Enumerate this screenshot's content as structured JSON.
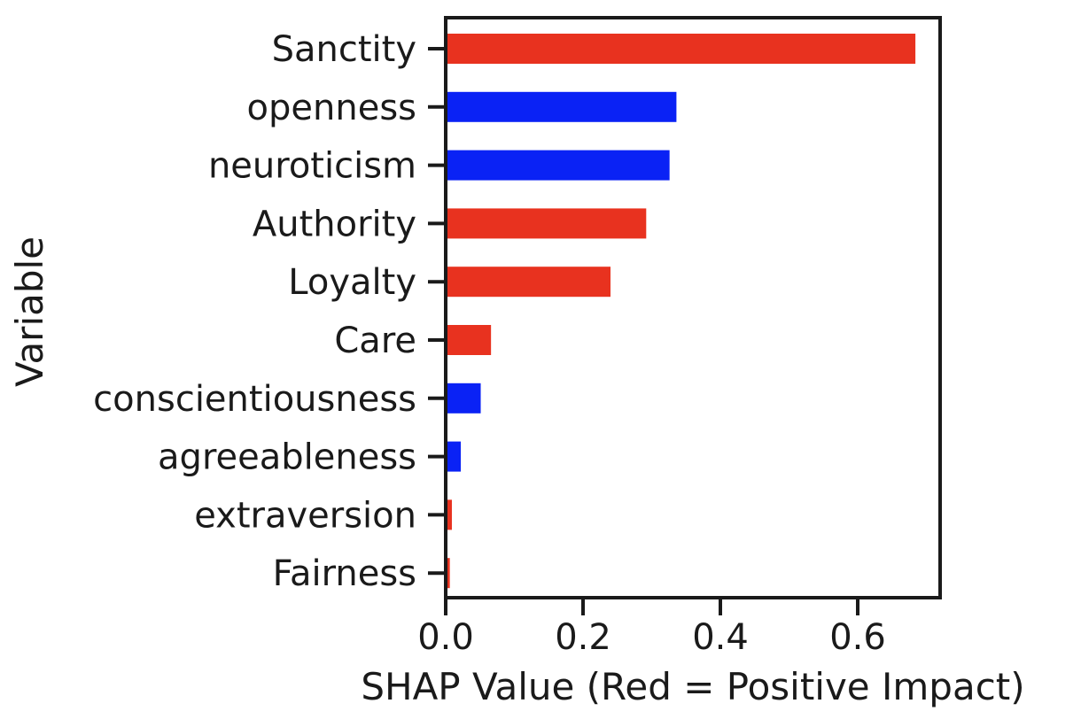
{
  "chart_data": {
    "type": "bar",
    "orientation": "horizontal",
    "categories": [
      "Sanctity",
      "openness",
      "neuroticism",
      "Authority",
      "Loyalty",
      "Care",
      "conscientiousness",
      "agreeableness",
      "extraversion",
      "Fairness"
    ],
    "values": [
      0.684,
      0.336,
      0.326,
      0.292,
      0.24,
      0.066,
      0.051,
      0.022,
      0.009,
      0.006
    ],
    "impact": [
      "positive",
      "negative",
      "negative",
      "positive",
      "positive",
      "positive",
      "negative",
      "negative",
      "positive",
      "positive"
    ],
    "xlabel": "SHAP Value (Red = Positive Impact)",
    "ylabel": "Variable",
    "xlim": [
      0,
      0.72
    ],
    "xticks": [
      0.0,
      0.2,
      0.4,
      0.6
    ],
    "xtick_labels": [
      "0.0",
      "0.2",
      "0.4",
      "0.6"
    ],
    "grid": false,
    "legend": "none",
    "colors": {
      "positive": "#e8321f",
      "negative": "#0a22f5",
      "axis": "#1a1a1a"
    }
  }
}
